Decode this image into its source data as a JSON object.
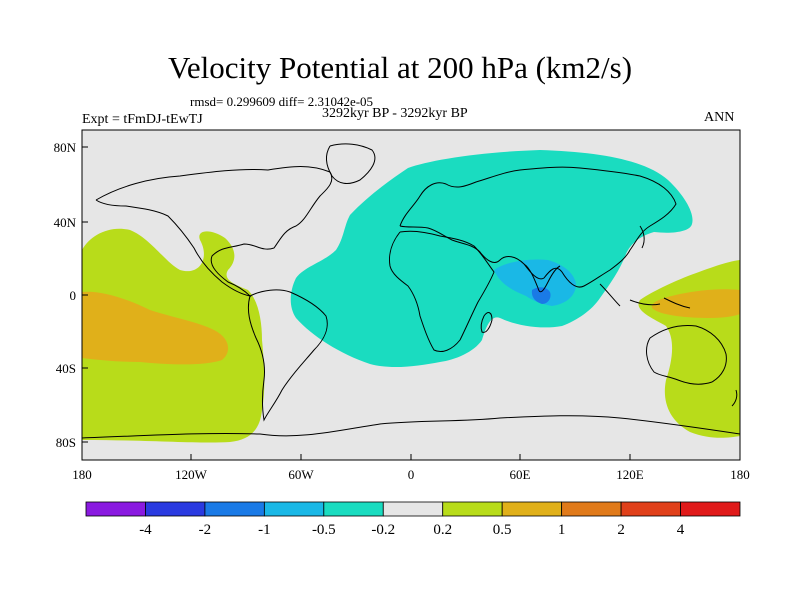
{
  "header": {
    "title": "Velocity Potential at 200 hPa (km2/s)",
    "stats": "rmsd= 0.299609 diff= 2.31042e-05",
    "experiment": "Expt = tFmDJ-tEwTJ",
    "period": "3292kyr BP - 3292kyr BP",
    "season": "ANN"
  },
  "map": {
    "lat_ticks": [
      "80N",
      "40N",
      "0",
      "40S",
      "80S"
    ],
    "lon_ticks": [
      "180",
      "120W",
      "60W",
      "0",
      "60E",
      "120E",
      "180"
    ],
    "background_color": "#e6e6e6"
  },
  "colorbar": {
    "labels": [
      "-4",
      "-2",
      "-1",
      "-0.5",
      "-0.2",
      "0.2",
      "0.5",
      "1",
      "2",
      "4"
    ],
    "colors": [
      "#8a1ae0",
      "#2a3ae0",
      "#1a7ae6",
      "#1ab8e6",
      "#1adcc0",
      "#e6e6e6",
      "#b8dc1a",
      "#e0b01a",
      "#e07a1a",
      "#e0401a",
      "#e01a1a"
    ]
  }
}
